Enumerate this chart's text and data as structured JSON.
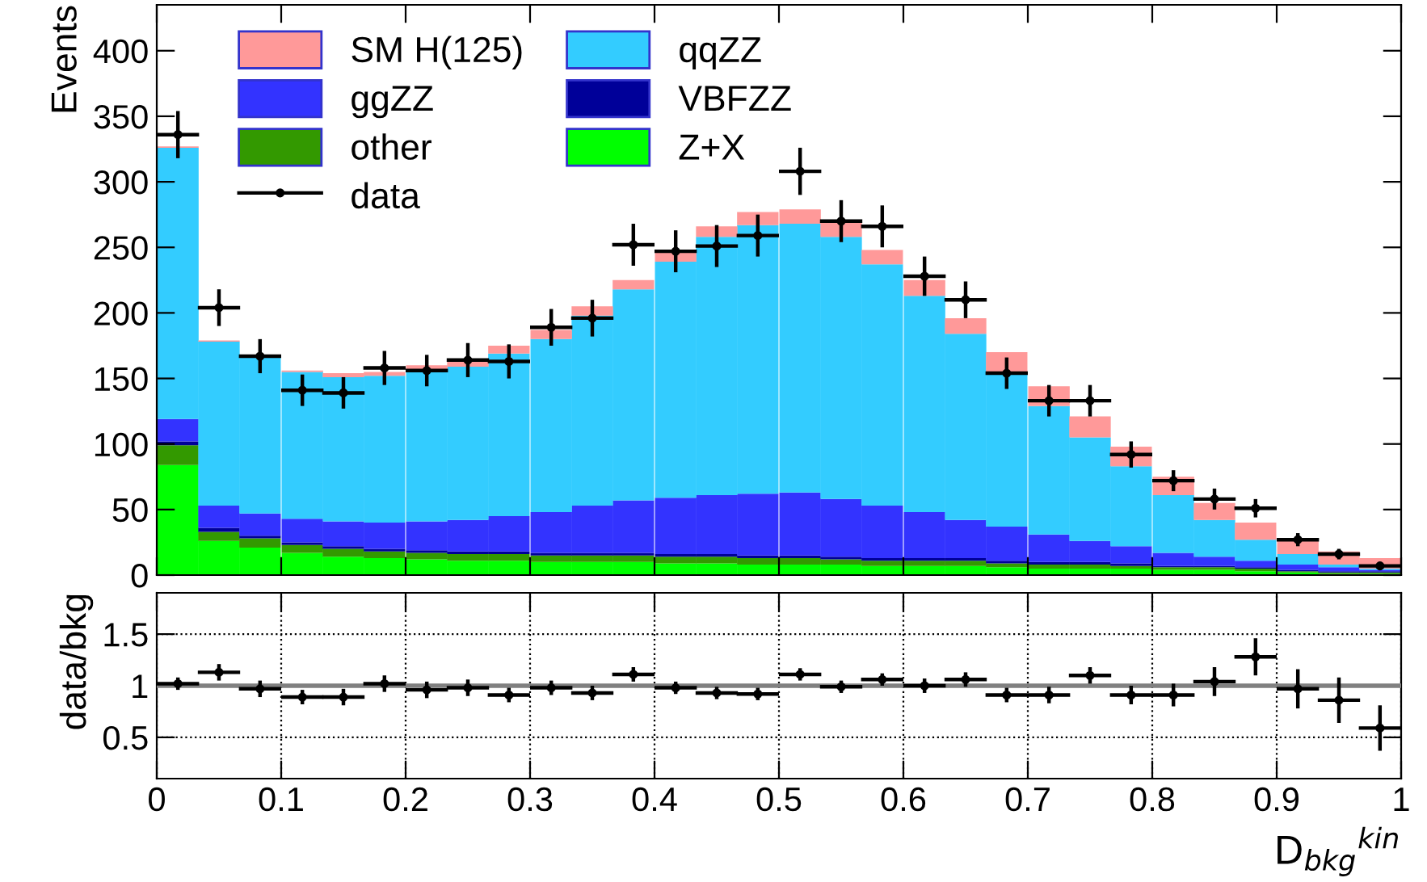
{
  "chart_data": [
    {
      "type": "bar",
      "stacked": true,
      "ylabel": "Events",
      "legend": "top left",
      "marker": "circle",
      "tick_labels": "y",
      "xlim": [
        0,
        1
      ],
      "xticks": [
        0,
        0.1,
        0.2,
        0.3,
        0.4,
        0.5,
        0.6,
        0.7,
        0.8,
        0.9,
        1
      ],
      "ylim": [
        0,
        435
      ],
      "yticks": [
        0,
        50,
        100,
        150,
        200,
        250,
        300,
        350,
        400
      ],
      "x": [
        0.017,
        0.05,
        0.083,
        0.117,
        0.15,
        0.183,
        0.217,
        0.25,
        0.283,
        0.317,
        0.35,
        0.383,
        0.417,
        0.45,
        0.483,
        0.517,
        0.55,
        0.583,
        0.617,
        0.65,
        0.683,
        0.717,
        0.75,
        0.783,
        0.817,
        0.85,
        0.883,
        0.917,
        0.95,
        0.983
      ],
      "series": [
        {
          "name": "Z+X",
          "color": "#00ff00",
          "values": [
            84,
            26,
            21,
            17,
            14,
            13,
            12,
            11,
            11,
            10,
            10,
            10,
            9,
            9,
            8,
            8,
            8,
            7,
            7,
            7,
            6,
            5,
            5,
            5,
            4,
            4,
            3,
            2,
            1,
            1
          ]
        },
        {
          "name": "other",
          "color": "#339900",
          "values": [
            15,
            7,
            7,
            6,
            6,
            5,
            5,
            5,
            5,
            5,
            5,
            5,
            5,
            5,
            5,
            5,
            4,
            4,
            4,
            4,
            3,
            3,
            3,
            2,
            2,
            2,
            2,
            1,
            1,
            1
          ]
        },
        {
          "name": "VBFZZ",
          "color": "#000099",
          "values": [
            3,
            3,
            2,
            2,
            2,
            2,
            2,
            2,
            2,
            2,
            2,
            2,
            2,
            2,
            2,
            2,
            2,
            2,
            2,
            2,
            2,
            2,
            2,
            2,
            1,
            1,
            1,
            1,
            1,
            1
          ]
        },
        {
          "name": "ggZZ",
          "color": "#3333ff",
          "values": [
            17,
            17,
            17,
            18,
            19,
            20,
            22,
            24,
            27,
            31,
            36,
            40,
            43,
            45,
            47,
            48,
            44,
            40,
            35,
            29,
            26,
            21,
            16,
            13,
            10,
            7,
            5,
            4,
            3,
            1
          ]
        },
        {
          "name": "qqZZ",
          "color": "#33ccff",
          "values": [
            207,
            125,
            121,
            112,
            110,
            112,
            114,
            117,
            124,
            132,
            145,
            161,
            180,
            197,
            205,
            205,
            200,
            184,
            165,
            142,
            117,
            98,
            79,
            61,
            44,
            28,
            16,
            8,
            2,
            1
          ]
        },
        {
          "name": "SM H(125)",
          "color": "#ff9999",
          "values": [
            1,
            1,
            null,
            1,
            3,
            3,
            5,
            4,
            6,
            7,
            7,
            7,
            8,
            8,
            10,
            11,
            13,
            11,
            12,
            12,
            16,
            15,
            16,
            15,
            14,
            13,
            13,
            11,
            10,
            8
          ]
        },
        {
          "name": "data",
          "type": "scatter",
          "color": "#000000",
          "values": [
            336,
            204,
            167,
            141,
            139,
            158,
            156,
            164,
            163,
            189,
            196,
            252,
            247,
            251,
            259,
            308,
            270,
            266,
            228,
            210,
            154,
            133,
            133,
            92,
            72,
            58,
            51,
            27,
            16,
            7
          ],
          "errors": [
            18,
            14,
            13,
            12,
            12,
            13,
            12,
            13,
            13,
            14,
            14,
            16,
            16,
            16,
            16,
            18,
            16,
            16,
            15,
            14,
            12,
            12,
            12,
            10,
            8,
            8,
            7,
            5,
            4,
            3
          ],
          "xerrors": [
            0.017,
            0.017,
            0.017,
            0.017,
            0.017,
            0.017,
            0.017,
            0.017,
            0.017,
            0.017,
            0.017,
            0.017,
            0.017,
            0.017,
            0.017,
            0.017,
            0.017,
            0.017,
            0.017,
            0.017,
            0.017,
            0.017,
            0.017,
            0.017,
            0.017,
            0.017,
            0.017,
            0.017,
            0.017,
            0.017
          ]
        }
      ]
    },
    {
      "type": "scatter",
      "ylabel": "data/bkg",
      "xlabel": "D$_{bkg}$$^{kin}$",
      "grid": true,
      "marker": "circle",
      "xlim": [
        0,
        1
      ],
      "xticks": [
        0,
        0.1,
        0.2,
        0.3,
        0.4,
        0.5,
        0.6,
        0.7,
        0.8,
        0.9,
        1
      ],
      "ylim": [
        0.1,
        1.9
      ],
      "yticks": [
        0.5,
        1,
        1.5
      ],
      "ref_lines": [
        {
          "axis": "y",
          "value": 1,
          "color": "#808080"
        }
      ],
      "series": [
        {
          "color": "#000000",
          "x": [
            0.017,
            0.05,
            0.083,
            0.117,
            0.15,
            0.183,
            0.217,
            0.25,
            0.283,
            0.317,
            0.35,
            0.383,
            0.417,
            0.45,
            0.483,
            0.517,
            0.55,
            0.583,
            0.617,
            0.65,
            0.683,
            0.717,
            0.75,
            0.783,
            0.817,
            0.85,
            0.883,
            0.917,
            0.95,
            0.983
          ],
          "values": [
            1.02,
            1.13,
            0.97,
            0.89,
            0.89,
            1.02,
            0.96,
            0.98,
            0.91,
            0.98,
            0.93,
            1.11,
            0.98,
            0.93,
            0.92,
            1.11,
            0.99,
            1.06,
            1.0,
            1.06,
            0.91,
            0.91,
            1.1,
            0.91,
            0.91,
            1.04,
            1.28,
            0.97,
            0.86,
            0.59
          ],
          "errors": [
            0.06,
            0.08,
            0.08,
            0.07,
            0.08,
            0.08,
            0.08,
            0.08,
            0.07,
            0.07,
            0.07,
            0.07,
            0.06,
            0.06,
            0.06,
            0.06,
            0.06,
            0.06,
            0.07,
            0.07,
            0.07,
            0.08,
            0.08,
            0.09,
            0.11,
            0.14,
            0.18,
            0.19,
            0.22,
            0.22
          ],
          "xerrors": [
            0.017,
            0.017,
            0.017,
            0.017,
            0.017,
            0.017,
            0.017,
            0.017,
            0.017,
            0.017,
            0.017,
            0.017,
            0.017,
            0.017,
            0.017,
            0.017,
            0.017,
            0.017,
            0.017,
            0.017,
            0.017,
            0.017,
            0.017,
            0.017,
            0.017,
            0.017,
            0.017,
            0.017,
            0.017,
            0.017
          ]
        }
      ]
    }
  ]
}
